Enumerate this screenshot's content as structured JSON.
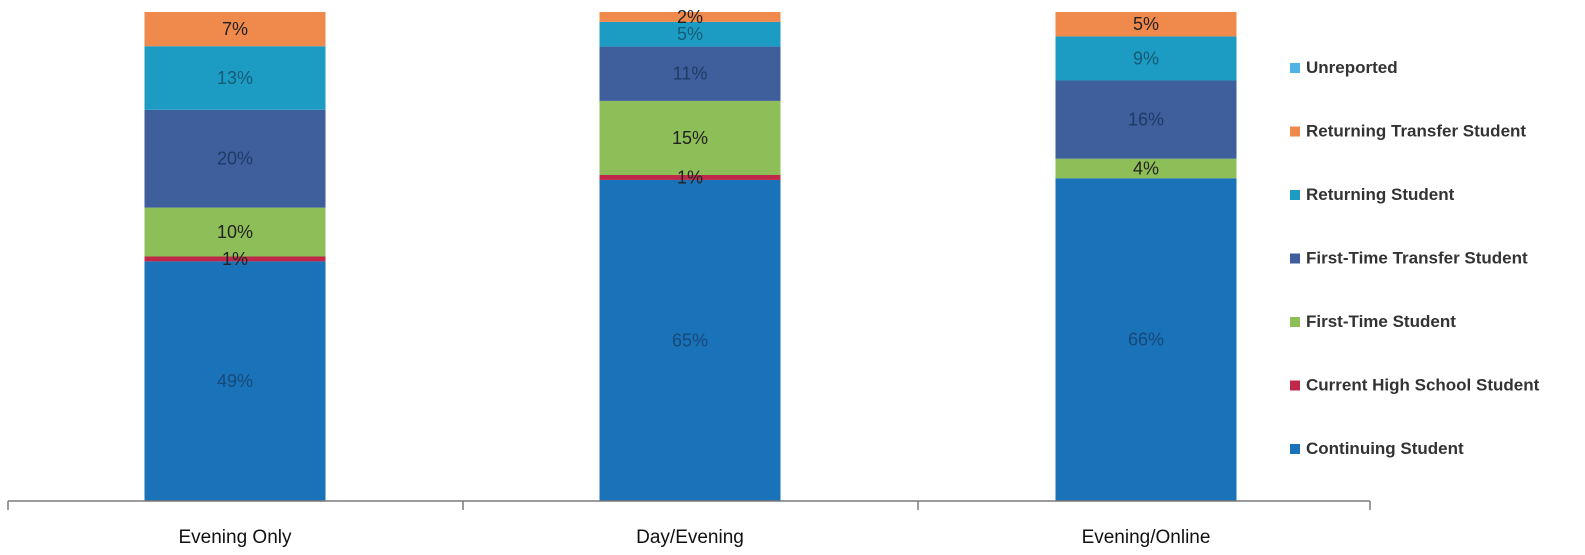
{
  "chart_data": {
    "type": "bar",
    "stacked": true,
    "normalized_percent": true,
    "categories": [
      "Evening Only",
      "Day/Evening",
      "Evening/Online"
    ],
    "series": [
      {
        "name": "Continuing Student",
        "color": "#1a72b8",
        "values": [
          49,
          65,
          66
        ],
        "labels": [
          "49%",
          "65%",
          "66%"
        ],
        "label_color": "#17497a"
      },
      {
        "name": "Current High School Student",
        "color": "#c0284a",
        "values": [
          1,
          1,
          0
        ],
        "labels": [
          "1%",
          "1%",
          ""
        ],
        "label_color": "#222222"
      },
      {
        "name": "First-Time Student",
        "color": "#8dbe57",
        "values": [
          10,
          15,
          4
        ],
        "labels": [
          "10%",
          "15%",
          "4%"
        ],
        "label_color": "#222222"
      },
      {
        "name": "First-Time Transfer Student",
        "color": "#3e5f9c",
        "values": [
          20,
          11,
          16
        ],
        "labels": [
          "20%",
          "11%",
          "16%"
        ],
        "label_color": "#1f3a66"
      },
      {
        "name": "Returning Student",
        "color": "#1d9cc3",
        "values": [
          13,
          5,
          9
        ],
        "labels": [
          "13%",
          "5%",
          "9%"
        ],
        "label_color": "#155a76"
      },
      {
        "name": "Returning Transfer Student",
        "color": "#f0894c",
        "values": [
          7,
          2,
          5
        ],
        "labels": [
          "7%",
          "2%",
          "5%"
        ],
        "label_color": "#222222"
      },
      {
        "name": "Unreported",
        "color": "#4fb3e6",
        "values": [
          0,
          0,
          0
        ],
        "labels": [
          "",
          "",
          ""
        ],
        "label_color": "#222222"
      }
    ],
    "legend_order": [
      "Unreported",
      "Returning Transfer Student",
      "Returning Student",
      "First-Time Transfer Student",
      "First-Time Student",
      "Current High School Student",
      "Continuing Student"
    ],
    "legend_position": "right",
    "ylim": [
      0,
      100
    ],
    "grid": false
  }
}
